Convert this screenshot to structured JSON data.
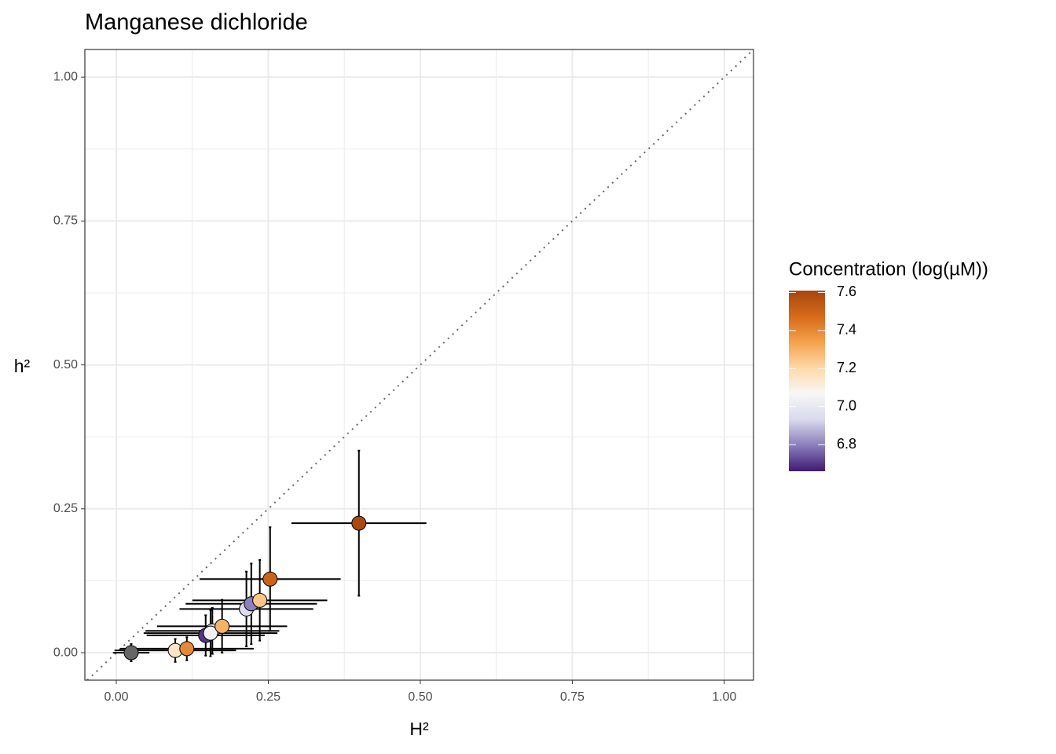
{
  "chart_data": {
    "type": "scatter",
    "title": "Manganese dichloride",
    "x_label": "H²",
    "y_label": "h²",
    "x": [
      0.0245,
      0.097,
      0.116,
      0.147,
      0.158,
      0.155,
      0.174,
      0.214,
      0.222,
      0.236,
      0.253,
      0.399
    ],
    "y": [
      0.0,
      0.004,
      0.007,
      0.03,
      0.038,
      0.034,
      0.046,
      0.076,
      0.085,
      0.091,
      0.128,
      0.225
    ],
    "xerr": [
      0.03,
      0.1,
      0.11,
      0.097,
      0.11,
      0.11,
      0.107,
      0.11,
      0.108,
      0.111,
      0.116,
      0.111
    ],
    "yerr": [
      0.015,
      0.02,
      0.02,
      0.035,
      0.04,
      0.04,
      0.046,
      0.065,
      0.07,
      0.07,
      0.09,
      0.126
    ],
    "concentration": [
      null,
      7.15,
      7.4,
      6.7,
      6.95,
      7.05,
      7.3,
      6.95,
      6.8,
      7.25,
      7.5,
      7.6
    ],
    "na_color": "#666666",
    "xlim": [
      -0.0517,
      1.048
    ],
    "ylim": [
      -0.0477,
      1.048
    ],
    "xticks": [
      {
        "value": 0,
        "label": "0.00"
      },
      {
        "value": 0.25,
        "label": "0.25"
      },
      {
        "value": 0.5,
        "label": "0.50"
      },
      {
        "value": 0.75,
        "label": "0.75"
      },
      {
        "value": 1,
        "label": "1.00"
      }
    ],
    "yticks": [
      {
        "value": 0,
        "label": "0.00"
      },
      {
        "value": 0.25,
        "label": "0.25"
      },
      {
        "value": 0.5,
        "label": "0.50"
      },
      {
        "value": 0.75,
        "label": "0.75"
      },
      {
        "value": 1,
        "label": "1.00"
      }
    ],
    "grid": true,
    "diagonal": true,
    "colorbar": {
      "title": "Concentration (log(µM))",
      "lim": [
        6.66,
        7.61
      ],
      "ticks": [
        6.8,
        7.0,
        7.2,
        7.4,
        7.6
      ],
      "colors": [
        "#3f1a72",
        "#8a7dbb",
        "#d8d9ec",
        "#f7f7f7",
        "#fdd9a8",
        "#f4a24c",
        "#d66a1a",
        "#a6470c"
      ]
    }
  }
}
